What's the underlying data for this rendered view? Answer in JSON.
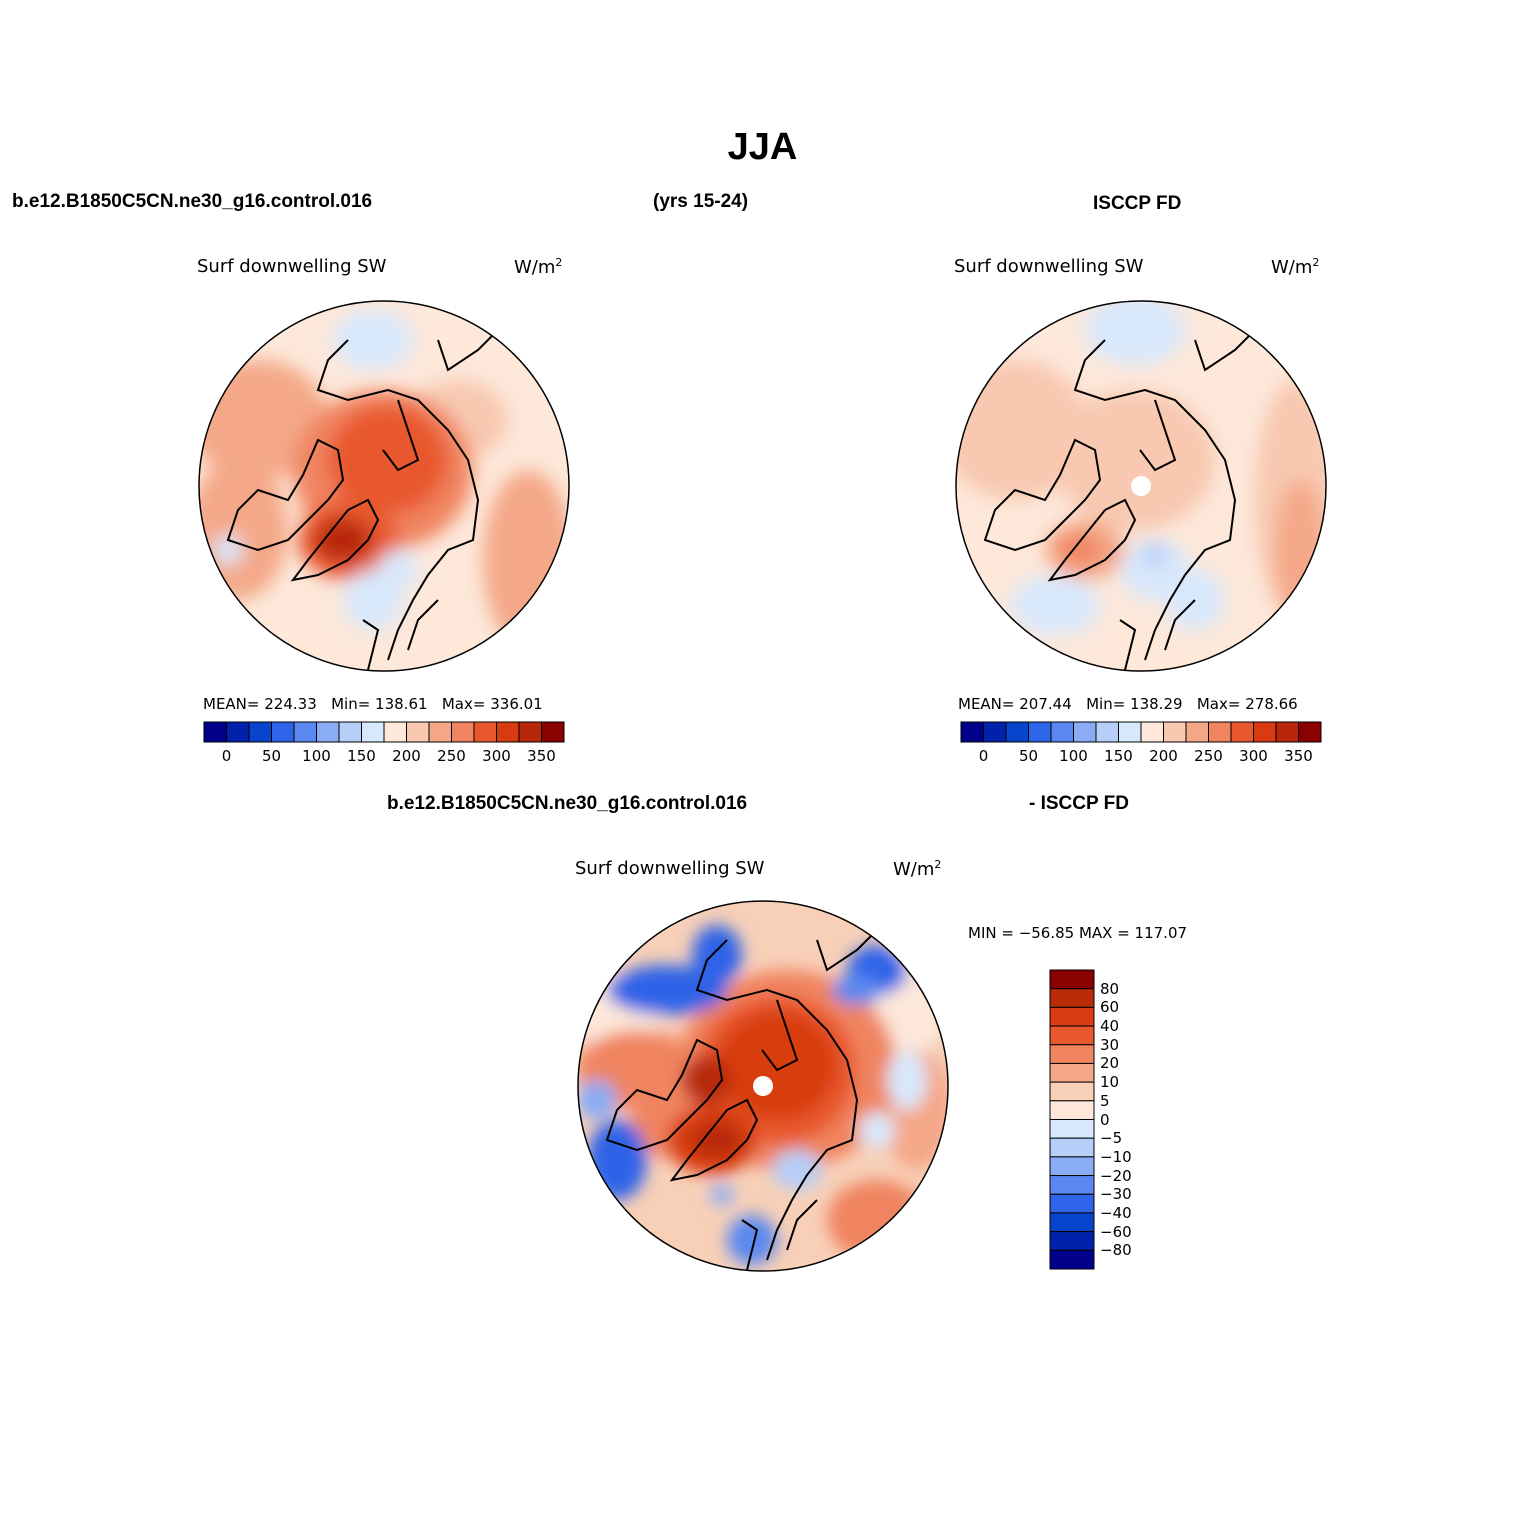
{
  "title": "JJA",
  "top_left_header": "b.e12.B1850C5CN.ne30_g16.control.016",
  "top_mid_header": "(yrs 15-24)",
  "top_right_header": "ISCCP FD",
  "bottom_left_header": "b.e12.B1850C5CN.ne30_g16.control.016",
  "bottom_right_header": "- ISCCP FD",
  "panels": [
    {
      "id": "model",
      "variable": "Surf downwelling SW",
      "units": "W/m",
      "units_sup": "2",
      "stats": {
        "mean_label": "MEAN=",
        "mean": "224.33",
        "min_label": "Min=",
        "min": "138.61",
        "max_label": "Max=",
        "max": "336.01"
      }
    },
    {
      "id": "obs",
      "variable": "Surf downwelling SW",
      "units": "W/m",
      "units_sup": "2",
      "stats": {
        "mean_label": "MEAN=",
        "mean": "207.44",
        "min_label": "Min=",
        "min": "138.29",
        "max_label": "Max=",
        "max": "278.66"
      }
    },
    {
      "id": "diff",
      "variable": "Surf downwelling SW",
      "units": "W/m",
      "units_sup": "2",
      "minmax": "MIN = −56.85 MAX = 117.07"
    }
  ],
  "abs_colorbar": {
    "colors": [
      "#00008b",
      "#0022aa",
      "#0844cc",
      "#2e64e8",
      "#5a88f0",
      "#8aacf4",
      "#b6cef8",
      "#d8e8fc",
      "#fde8da",
      "#f8c8b0",
      "#f4a888",
      "#f08460",
      "#e8582e",
      "#d83a12",
      "#b82808",
      "#8b0000"
    ],
    "ticks": [
      "0",
      "50",
      "100",
      "150",
      "200",
      "250",
      "300",
      "350"
    ]
  },
  "diff_colorbar": {
    "colors": [
      "#8b0000",
      "#b82a08",
      "#d83c10",
      "#e8582e",
      "#f08460",
      "#f4a888",
      "#f8d0b8",
      "#fde8da",
      "#d8e8fc",
      "#b6cef8",
      "#8aacf4",
      "#5a88f0",
      "#2e64e8",
      "#0844cc",
      "#0022aa",
      "#00008b"
    ],
    "ticks": [
      "80",
      "60",
      "40",
      "30",
      "20",
      "10",
      "5",
      "0",
      "−5",
      "−10",
      "−20",
      "−30",
      "−40",
      "−60",
      "−80"
    ]
  }
}
